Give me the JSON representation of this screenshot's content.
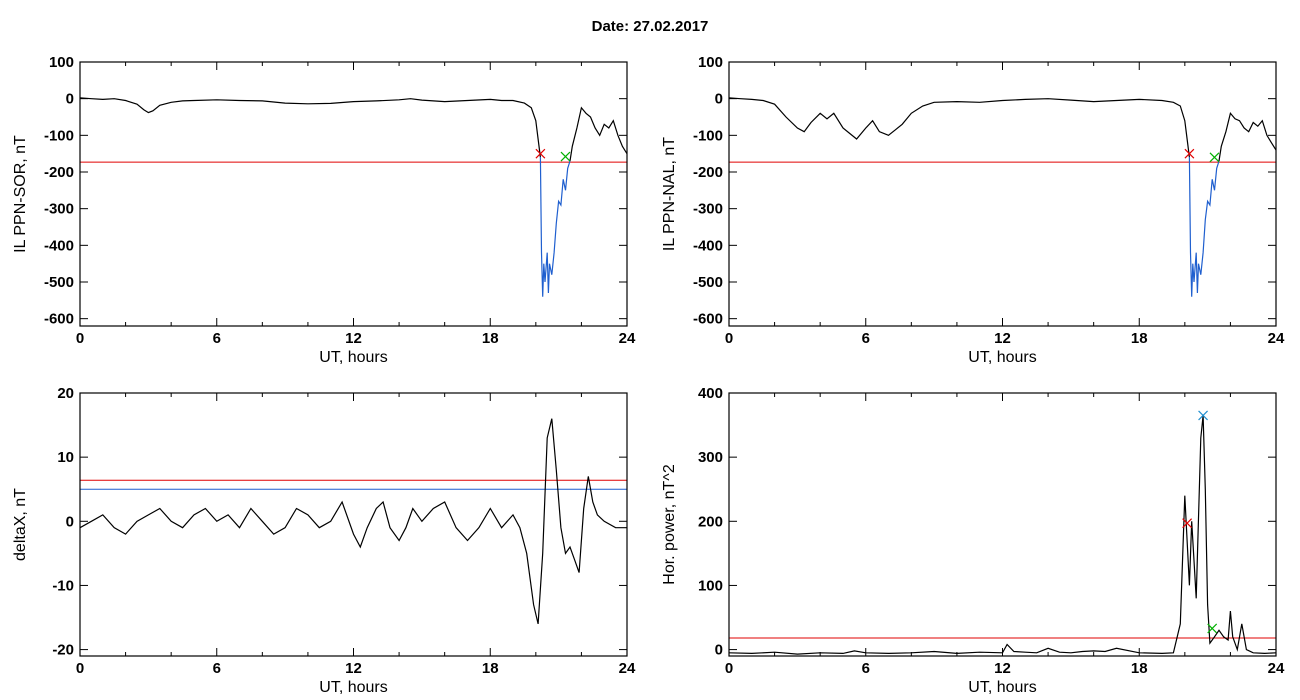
{
  "title": "Date:  27.02.2017",
  "chart_data": [
    {
      "type": "line",
      "xlabel": "UT, hours",
      "ylabel": "IL PPN-SOR, nT",
      "xlim": [
        0,
        24
      ],
      "ylim": [
        -620,
        100
      ],
      "xticks": [
        0,
        6,
        12,
        18,
        24
      ],
      "yticks": [
        100,
        0,
        -100,
        -200,
        -300,
        -400,
        -500,
        -600
      ],
      "series": [
        {
          "color": "#000000",
          "x": [
            0,
            0.5,
            1,
            1.5,
            2,
            2.5,
            2.8,
            3.0,
            3.2,
            3.5,
            4,
            4.5,
            5,
            6,
            7,
            8,
            9,
            10,
            11,
            12,
            13,
            14,
            14.5,
            15,
            16,
            17,
            18,
            18.5,
            19,
            19.5,
            19.8,
            20.0,
            20.1,
            20.2
          ],
          "y": [
            2,
            0,
            -2,
            0,
            -5,
            -15,
            -30,
            -38,
            -33,
            -18,
            -10,
            -6,
            -5,
            -3,
            -5,
            -6,
            -12,
            -14,
            -13,
            -8,
            -6,
            -3,
            0,
            -4,
            -8,
            -5,
            -2,
            -5,
            -5,
            -12,
            -25,
            -60,
            -110,
            -160
          ]
        },
        {
          "color": "#1f5fcf",
          "x": [
            20.2,
            20.25,
            20.3,
            20.35,
            20.4,
            20.5,
            20.55,
            20.6,
            20.7,
            20.8,
            20.9,
            21.0,
            21.1,
            21.2,
            21.3,
            21.4,
            21.5
          ],
          "y": [
            -160,
            -420,
            -540,
            -450,
            -500,
            -420,
            -530,
            -450,
            -480,
            -420,
            -340,
            -280,
            -290,
            -220,
            -250,
            -190,
            -170
          ]
        },
        {
          "color": "#000000",
          "x": [
            21.5,
            21.6,
            21.8,
            22.0,
            22.2,
            22.4,
            22.6,
            22.8,
            23.0,
            23.2,
            23.4,
            23.6,
            23.8,
            24.0
          ],
          "y": [
            -170,
            -130,
            -80,
            -25,
            -40,
            -50,
            -80,
            -100,
            -70,
            -80,
            -60,
            -100,
            -130,
            -150
          ]
        }
      ],
      "hlines": [
        {
          "y": -173,
          "color": "#e00000"
        }
      ],
      "markers": [
        {
          "x": 20.2,
          "y": -150,
          "color": "#e00000"
        },
        {
          "x": 21.3,
          "y": -158,
          "color": "#00b000"
        }
      ]
    },
    {
      "type": "line",
      "xlabel": "UT, hours",
      "ylabel": "IL PPN-NAL, nT",
      "xlim": [
        0,
        24
      ],
      "ylim": [
        -620,
        100
      ],
      "xticks": [
        0,
        6,
        12,
        18,
        24
      ],
      "yticks": [
        100,
        0,
        -100,
        -200,
        -300,
        -400,
        -500,
        -600
      ],
      "series": [
        {
          "color": "#000000",
          "x": [
            0,
            0.5,
            1,
            1.5,
            2,
            2.5,
            3,
            3.3,
            3.6,
            4,
            4.3,
            4.6,
            5,
            5.3,
            5.6,
            6,
            6.3,
            6.6,
            7,
            7.3,
            7.6,
            8,
            8.5,
            9,
            10,
            11,
            12,
            13,
            14,
            15,
            16,
            17,
            18,
            19,
            19.5,
            19.8,
            20.0,
            20.1,
            20.2
          ],
          "y": [
            2,
            0,
            -2,
            -5,
            -15,
            -50,
            -80,
            -90,
            -65,
            -40,
            -55,
            -40,
            -80,
            -95,
            -110,
            -80,
            -60,
            -90,
            -100,
            -85,
            -70,
            -40,
            -20,
            -10,
            -8,
            -10,
            -5,
            -2,
            0,
            -4,
            -8,
            -5,
            -2,
            -5,
            -10,
            -20,
            -60,
            -110,
            -160
          ]
        },
        {
          "color": "#1f5fcf",
          "x": [
            20.2,
            20.25,
            20.3,
            20.35,
            20.4,
            20.5,
            20.55,
            20.6,
            20.7,
            20.8,
            20.9,
            21.0,
            21.1,
            21.2,
            21.3,
            21.4,
            21.5
          ],
          "y": [
            -160,
            -420,
            -540,
            -450,
            -500,
            -420,
            -530,
            -450,
            -480,
            -420,
            -330,
            -280,
            -290,
            -220,
            -250,
            -190,
            -170
          ]
        },
        {
          "color": "#000000",
          "x": [
            21.5,
            21.6,
            21.8,
            22.0,
            22.2,
            22.4,
            22.6,
            22.8,
            23.0,
            23.2,
            23.4,
            23.6,
            23.8,
            24.0
          ],
          "y": [
            -170,
            -130,
            -90,
            -40,
            -55,
            -60,
            -80,
            -90,
            -65,
            -75,
            -60,
            -100,
            -120,
            -140
          ]
        }
      ],
      "hlines": [
        {
          "y": -173,
          "color": "#e00000"
        }
      ],
      "markers": [
        {
          "x": 20.2,
          "y": -150,
          "color": "#e00000"
        },
        {
          "x": 21.3,
          "y": -160,
          "color": "#00b000"
        }
      ]
    },
    {
      "type": "line",
      "xlabel": "UT, hours",
      "ylabel": "deltaX, nT",
      "xlim": [
        0,
        24
      ],
      "ylim": [
        -21,
        20
      ],
      "xticks": [
        0,
        6,
        12,
        18,
        24
      ],
      "yticks": [
        20,
        10,
        0,
        -10,
        -20
      ],
      "series": [
        {
          "color": "#000000",
          "x": [
            0,
            0.5,
            1,
            1.5,
            2,
            2.5,
            3,
            3.5,
            4,
            4.5,
            5,
            5.5,
            6,
            6.5,
            7,
            7.5,
            8,
            8.5,
            9,
            9.5,
            10,
            10.5,
            11,
            11.5,
            12,
            12.3,
            12.6,
            13,
            13.3,
            13.6,
            14,
            14.3,
            14.6,
            15,
            15.5,
            16,
            16.5,
            17,
            17.5,
            18,
            18.5,
            19,
            19.3,
            19.6,
            19.9,
            20.1,
            20.3,
            20.5,
            20.7,
            20.9,
            21.1,
            21.3,
            21.5,
            21.7,
            21.9,
            22.1,
            22.3,
            22.5,
            22.7,
            23,
            23.5,
            24
          ],
          "y": [
            -1,
            0,
            1,
            -1,
            -2,
            0,
            1,
            2,
            0,
            -1,
            1,
            2,
            0,
            1,
            -1,
            2,
            0,
            -2,
            -1,
            2,
            1,
            -1,
            0,
            3,
            -2,
            -4,
            -1,
            2,
            3,
            -1,
            -3,
            -1,
            2,
            0,
            2,
            3,
            -1,
            -3,
            -1,
            2,
            -1,
            1,
            -1,
            -5,
            -13,
            -16,
            -5,
            13,
            16,
            8,
            -1,
            -5,
            -4,
            -6,
            -8,
            2,
            7,
            3,
            1,
            0,
            -1,
            -1
          ]
        }
      ],
      "hlines": [
        {
          "y": 6.4,
          "color": "#e00000"
        },
        {
          "y": 5.0,
          "color": "#1f5fcf"
        }
      ],
      "markers": []
    },
    {
      "type": "line",
      "xlabel": "UT, hours",
      "ylabel": "Hor. power, nT^2",
      "xlim": [
        0,
        24
      ],
      "ylim": [
        -10,
        400
      ],
      "xticks": [
        0,
        6,
        12,
        18,
        24
      ],
      "yticks": [
        400,
        300,
        200,
        100,
        0
      ],
      "series": [
        {
          "color": "#000000",
          "x": [
            0,
            1,
            2,
            3,
            4,
            5,
            5.5,
            6,
            7,
            8,
            9,
            10,
            11,
            12,
            12.2,
            12.5,
            13,
            13.5,
            14,
            14.5,
            15,
            15.5,
            16,
            16.5,
            17,
            18,
            19,
            19.5,
            19.8,
            20.0,
            20.2,
            20.3,
            20.5,
            20.7,
            20.8,
            20.9,
            21.0,
            21.1,
            21.2,
            21.3,
            21.5,
            21.7,
            21.9,
            22.0,
            22.1,
            22.3,
            22.5,
            22.7,
            23,
            23.5,
            24
          ],
          "y": [
            -5,
            -6,
            -4,
            -7,
            -5,
            -6,
            -2,
            -5,
            -6,
            -5,
            -3,
            -6,
            -4,
            -5,
            8,
            -3,
            -4,
            -5,
            2,
            -4,
            -5,
            -3,
            -2,
            -3,
            2,
            -5,
            -6,
            -5,
            40,
            240,
            100,
            200,
            80,
            330,
            365,
            250,
            70,
            10,
            15,
            20,
            30,
            20,
            15,
            60,
            20,
            0,
            40,
            0,
            -5,
            -6,
            -5
          ]
        }
      ],
      "hlines": [
        {
          "y": 18,
          "color": "#e00000"
        }
      ],
      "markers": [
        {
          "x": 20.1,
          "y": 197,
          "color": "#e00000"
        },
        {
          "x": 20.8,
          "y": 365,
          "color": "#1f8fd0"
        },
        {
          "x": 21.2,
          "y": 33,
          "color": "#00b000"
        }
      ]
    }
  ]
}
